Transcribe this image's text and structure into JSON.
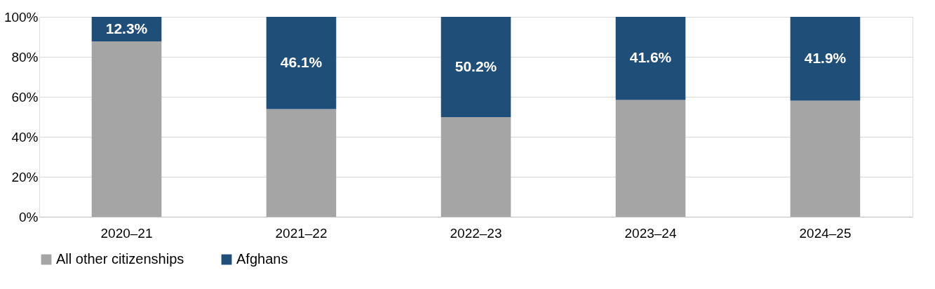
{
  "chart_data": {
    "type": "bar",
    "stacked": true,
    "categories": [
      "2020–21",
      "2021–22",
      "2022–23",
      "2023–24",
      "2024–25"
    ],
    "series": [
      {
        "name": "All other citizenships",
        "color": "#a5a5a5",
        "values": [
          87.7,
          53.9,
          49.8,
          58.4,
          58.1
        ]
      },
      {
        "name": "Afghans",
        "color": "#1f4e79",
        "values": [
          12.3,
          46.1,
          50.2,
          41.6,
          41.9
        ],
        "value_labels": [
          "12.3%",
          "46.1%",
          "50.2%",
          "41.6%",
          "41.9%"
        ]
      }
    ],
    "ylim": [
      0,
      100
    ],
    "yticks": [
      {
        "value": 0,
        "label": "0%"
      },
      {
        "value": 20,
        "label": "20%"
      },
      {
        "value": 40,
        "label": "40%"
      },
      {
        "value": 60,
        "label": "60%"
      },
      {
        "value": 80,
        "label": "80%"
      },
      {
        "value": 100,
        "label": "100%"
      }
    ],
    "grid": "y",
    "legend": "bottom"
  }
}
